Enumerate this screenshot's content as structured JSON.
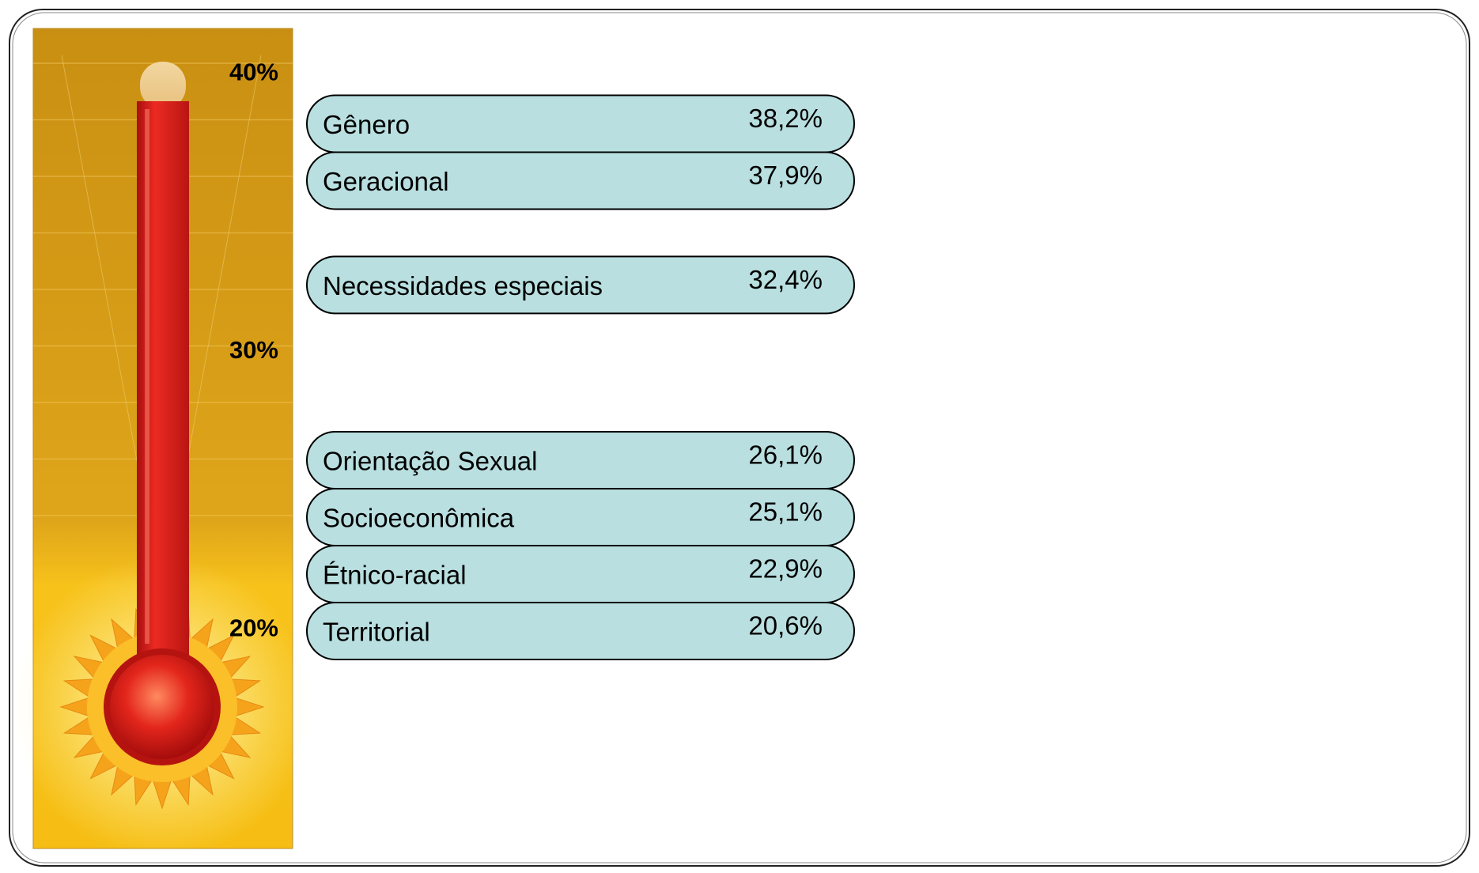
{
  "chart_data": {
    "type": "thermometer",
    "categories": [
      "Gênero",
      "Geracional",
      "Necessidades especiais",
      "Orientação Sexual",
      "Socioeconômica",
      "Étnico-racial",
      "Territorial"
    ],
    "values": [
      38.2,
      37.9,
      32.4,
      26.1,
      25.1,
      22.9,
      20.6
    ],
    "value_labels": [
      "38,2%",
      "37,9%",
      "32,4%",
      "26,1%",
      "25,1%",
      "22,9%",
      "20,6%"
    ],
    "color": "#b9dfe0",
    "ylim": [
      17,
      41
    ],
    "yticks": [
      {
        "value": 40,
        "label": "40%"
      },
      {
        "value": 30,
        "label": "30%"
      },
      {
        "value": 20,
        "label": "20%"
      }
    ]
  }
}
